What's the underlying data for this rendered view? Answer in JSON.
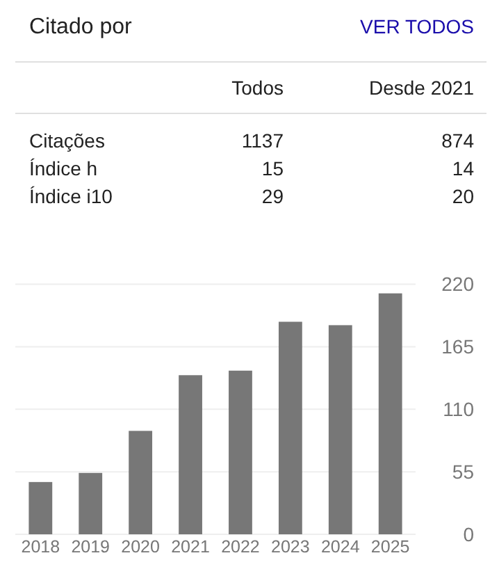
{
  "chart_data": [
    {
      "type": "other",
      "title": "Citado por",
      "annotations": [
        "VER TODOS",
        "Todos",
        "Desde 2021",
        "Citações",
        "1137",
        "874",
        "Índice h",
        "15",
        "14",
        "Índice i10",
        "29",
        "20"
      ]
    },
    {
      "type": "bar",
      "categories": [
        "2018",
        "2019",
        "2020",
        "2021",
        "2022",
        "2023",
        "2024",
        "2025"
      ],
      "values": [
        46,
        54,
        91,
        140,
        144,
        187,
        184,
        212
      ],
      "color": "#777777",
      "ylim": [
        0,
        220
      ],
      "yticks": [
        0,
        55,
        110,
        165,
        220
      ],
      "grid": "y"
    }
  ]
}
